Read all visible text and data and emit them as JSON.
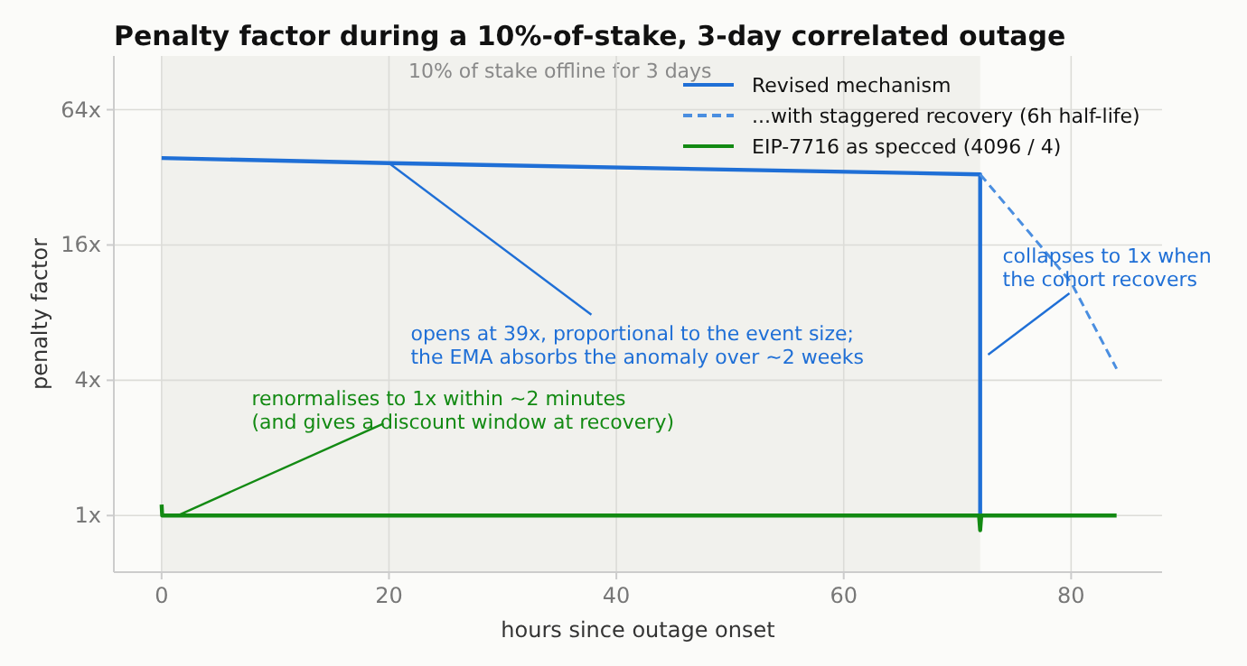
{
  "chart_data": {
    "type": "line",
    "title": "Penalty factor during a 10%-of-stake, 3-day correlated outage",
    "xlabel": "hours since outage onset",
    "ylabel": "penalty factor",
    "xlim": [
      -4.2,
      88
    ],
    "xticks": [
      0,
      20,
      40,
      60,
      80
    ],
    "ylim": [
      0.56,
      111
    ],
    "yticks": [
      {
        "value": 1,
        "label": "1x"
      },
      {
        "value": 4,
        "label": "4x"
      },
      {
        "value": 16,
        "label": "16x"
      },
      {
        "value": 64,
        "label": "64x"
      }
    ],
    "log": true,
    "grid": true,
    "legend": "top right",
    "series": [
      {
        "name": "Revised mechanism",
        "color": "#1f6fd6",
        "line_style": "solid",
        "x": [
          0,
          20,
          72,
          72
        ],
        "values": [
          39,
          37,
          33,
          1
        ]
      },
      {
        "name": "...with staggered recovery (6h half-life)",
        "color": "#4a8ee0",
        "line_style": "dashed",
        "x": [
          72,
          76,
          80,
          84
        ],
        "values": [
          33,
          19,
          10.9,
          4.5
        ]
      },
      {
        "name": "EIP-7716 as specced (4096 / 4)",
        "color": "#138a13",
        "line_style": "solid",
        "x": [
          0,
          0.05,
          71.9,
          72,
          72.1,
          84
        ],
        "values": [
          1.12,
          1,
          1,
          0.86,
          1,
          1
        ]
      }
    ],
    "bands": [
      {
        "axis": "x",
        "from": 0,
        "to": 72,
        "label": "10% of stake offline for 3 days",
        "color": "#f1f1ed"
      }
    ],
    "annotations": [
      {
        "text": "opens at 39x, proportional to the event size;\nthe EMA absorbs the anomaly over ~2 weeks",
        "x": 20,
        "y": 37
      },
      {
        "text": "renormalises to 1x within ~2 minutes\n(and gives a discount window at recovery)",
        "x": 1.4,
        "y": 1
      },
      {
        "text": "collapses to 1x when\nthe cohort recovers",
        "x": 72.7,
        "y": 5.2
      }
    ]
  }
}
